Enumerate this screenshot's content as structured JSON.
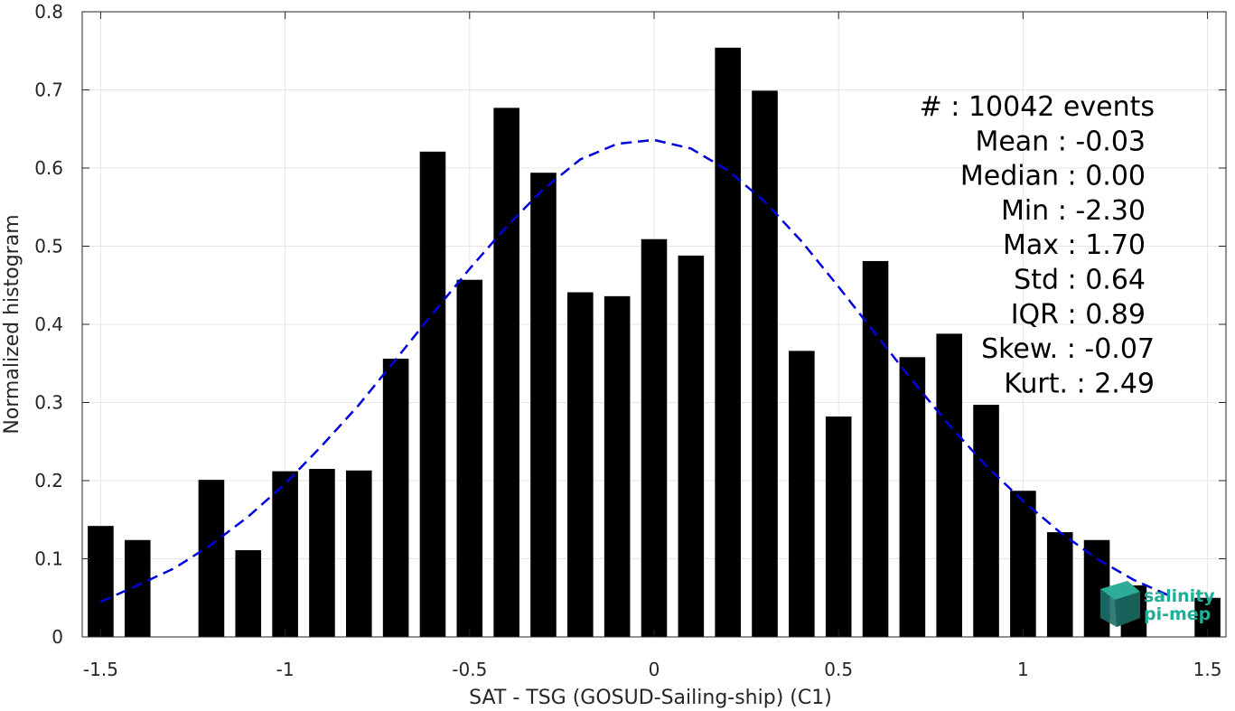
{
  "chart_data": {
    "type": "bar",
    "xlabel": "SAT - TSG (GOSUD-Sailing-ship) (C1)",
    "ylabel": "Normalized histogram",
    "xlim": [
      -1.55,
      1.55
    ],
    "ylim": [
      0,
      0.8
    ],
    "xticks": [
      -1.5,
      -1,
      -0.5,
      0,
      0.5,
      1,
      1.5
    ],
    "xtick_labels": [
      "-1.5",
      "-1",
      "-0.5",
      "0",
      "0.5",
      "1",
      "1.5"
    ],
    "yticks": [
      0,
      0.1,
      0.2,
      0.3,
      0.4,
      0.5,
      0.6,
      0.7,
      0.8
    ],
    "ytick_labels": [
      "0",
      "0.1",
      "0.2",
      "0.3",
      "0.4",
      "0.5",
      "0.6",
      "0.7",
      "0.8"
    ],
    "grid": true,
    "bar_width": 0.07,
    "bar_color": "#000000",
    "bars": {
      "x": [
        -1.5,
        -1.4,
        -1.2,
        -1.1,
        -1.0,
        -0.9,
        -0.8,
        -0.7,
        -0.6,
        -0.5,
        -0.4,
        -0.3,
        -0.2,
        -0.1,
        0.0,
        0.1,
        0.2,
        0.3,
        0.4,
        0.5,
        0.6,
        0.7,
        0.8,
        0.9,
        1.0,
        1.1,
        1.2,
        1.3,
        1.5
      ],
      "values": [
        0.142,
        0.124,
        0.201,
        0.111,
        0.212,
        0.215,
        0.213,
        0.356,
        0.621,
        0.457,
        0.677,
        0.594,
        0.441,
        0.436,
        0.509,
        0.488,
        0.754,
        0.699,
        0.366,
        0.282,
        0.481,
        0.358,
        0.388,
        0.297,
        0.187,
        0.134,
        0.124,
        0.066,
        0.05
      ]
    },
    "fit_curve": {
      "style": "dashed",
      "color": "#0000dd",
      "x": [
        -1.5,
        -1.4,
        -1.3,
        -1.2,
        -1.1,
        -1.0,
        -0.9,
        -0.8,
        -0.7,
        -0.6,
        -0.5,
        -0.4,
        -0.3,
        -0.2,
        -0.1,
        0.0,
        0.1,
        0.2,
        0.3,
        0.4,
        0.5,
        0.6,
        0.7,
        0.8,
        0.9,
        1.0,
        1.1,
        1.2,
        1.3,
        1.4
      ],
      "y": [
        0.045,
        0.066,
        0.088,
        0.118,
        0.154,
        0.196,
        0.245,
        0.297,
        0.355,
        0.414,
        0.471,
        0.525,
        0.573,
        0.611,
        0.631,
        0.636,
        0.625,
        0.597,
        0.557,
        0.506,
        0.448,
        0.388,
        0.328,
        0.271,
        0.219,
        0.174,
        0.134,
        0.1,
        0.073,
        0.052
      ]
    },
    "stats": {
      "lines": [
        "#  : 10042 events",
        "Mean : -0.03",
        "Median : 0.00",
        "Min : -2.30",
        "Max : 1.70",
        "Std : 0.64",
        "IQR : 0.89",
        "Skew. : -0.07",
        "Kurt. : 2.49"
      ],
      "placement": "top-right"
    },
    "logo": {
      "line1": "salinity",
      "line2": "pi-mep",
      "color": "#1fae97"
    }
  }
}
